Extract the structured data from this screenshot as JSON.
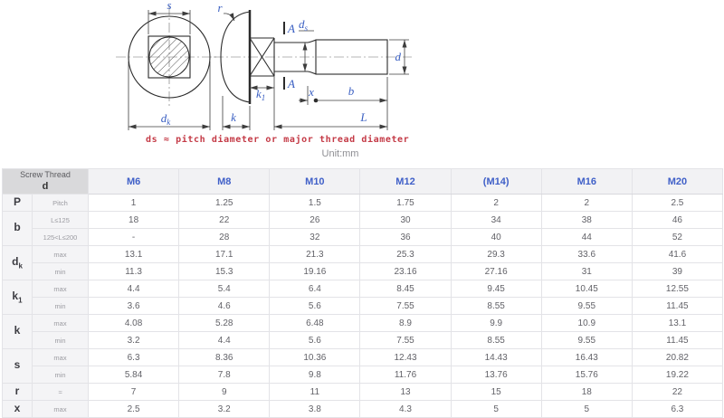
{
  "drawing": {
    "labels": {
      "s": "s",
      "r": "r",
      "a_top": "A",
      "a_bottom": "A",
      "ds_base": "d",
      "ds_sub": "s",
      "d": "d",
      "k1_base": "k",
      "k1_sub": "1",
      "k": "k",
      "b": "b",
      "x": "x",
      "L": "L",
      "dk_base": "d",
      "dk_sub": "k"
    },
    "note": "ds ≈ pitch diameter or major thread diameter",
    "unit": "Unit:mm"
  },
  "colors": {
    "label_blue": "#3a5fc2",
    "header_blue": "#4060c8",
    "note_red": "#c43a46",
    "corner_gray": "#d9d9db",
    "band_gray": "#f4f4f6"
  },
  "table": {
    "corner": {
      "line1": "Screw Thread",
      "line2": "d"
    },
    "columns": [
      "M6",
      "M8",
      "M10",
      "M12",
      "(M14)",
      "M16",
      "M20"
    ],
    "groups": [
      {
        "base": "P",
        "sub": ""
      },
      {
        "base": "b",
        "sub": ""
      },
      {
        "base": "d",
        "sub": "k"
      },
      {
        "base": "k",
        "sub": "1"
      },
      {
        "base": "k",
        "sub": ""
      },
      {
        "base": "s",
        "sub": ""
      },
      {
        "base": "r",
        "sub": ""
      },
      {
        "base": "x",
        "sub": ""
      }
    ],
    "rows": [
      {
        "sub": "Pitch",
        "values": [
          "1",
          "1.25",
          "1.5",
          "1.75",
          "2",
          "2",
          "2.5"
        ]
      },
      {
        "sub": "L≤125",
        "values": [
          "18",
          "22",
          "26",
          "30",
          "34",
          "38",
          "46"
        ]
      },
      {
        "sub": "125<L≤200",
        "values": [
          "-",
          "28",
          "32",
          "36",
          "40",
          "44",
          "52"
        ]
      },
      {
        "sub": "max",
        "values": [
          "13.1",
          "17.1",
          "21.3",
          "25.3",
          "29.3",
          "33.6",
          "41.6"
        ]
      },
      {
        "sub": "min",
        "values": [
          "11.3",
          "15.3",
          "19.16",
          "23.16",
          "27.16",
          "31",
          "39"
        ]
      },
      {
        "sub": "max",
        "values": [
          "4.4",
          "5.4",
          "6.4",
          "8.45",
          "9.45",
          "10.45",
          "12.55"
        ]
      },
      {
        "sub": "min",
        "values": [
          "3.6",
          "4.6",
          "5.6",
          "7.55",
          "8.55",
          "9.55",
          "11.45"
        ]
      },
      {
        "sub": "max",
        "values": [
          "4.08",
          "5.28",
          "6.48",
          "8.9",
          "9.9",
          "10.9",
          "13.1"
        ]
      },
      {
        "sub": "min",
        "values": [
          "3.2",
          "4.4",
          "5.6",
          "7.55",
          "8.55",
          "9.55",
          "11.45"
        ]
      },
      {
        "sub": "max",
        "values": [
          "6.3",
          "8.36",
          "10.36",
          "12.43",
          "14.43",
          "16.43",
          "20.82"
        ]
      },
      {
        "sub": "min",
        "values": [
          "5.84",
          "7.8",
          "9.8",
          "11.76",
          "13.76",
          "15.76",
          "19.22"
        ]
      },
      {
        "sub": "≈",
        "values": [
          "7",
          "9",
          "11",
          "13",
          "15",
          "18",
          "22"
        ]
      },
      {
        "sub": "max",
        "values": [
          "2.5",
          "3.2",
          "3.8",
          "4.3",
          "5",
          "5",
          "6.3"
        ]
      }
    ]
  }
}
